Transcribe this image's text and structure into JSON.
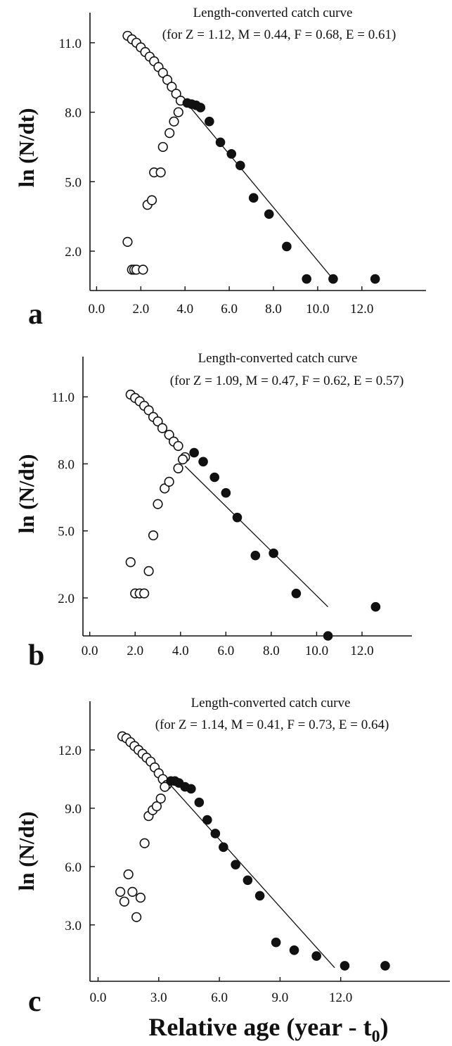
{
  "colors": {
    "ink": "#111111",
    "background": "#ffffff"
  },
  "figure": {
    "xlabel": "Relative age (year - t",
    "xlabel_subscript": "0",
    "xlabel_suffix": ")"
  },
  "chart_data": [
    {
      "type": "scatter",
      "panel_label": "a",
      "title": "Length-converted catch curve",
      "subtitle": "(for Z = 1.12, M = 0.44, F = 0.68, E = 0.61)",
      "ylabel": "ln (N/dt)",
      "xlabel": "",
      "xlim": [
        -0.3,
        14.9
      ],
      "ylim": [
        0.3,
        12.3
      ],
      "x_ticks": [
        0,
        2,
        4,
        6,
        8,
        10,
        12
      ],
      "x_tick_labels": [
        "0.0",
        "2.0",
        "4.0",
        "6.0",
        "8.0",
        "10.0",
        "12.0"
      ],
      "y_ticks": [
        2,
        5,
        8,
        11
      ],
      "y_tick_labels": [
        "2.0",
        "5.0",
        "8.0",
        "11.0"
      ],
      "series": [
        {
          "marker": "open",
          "x": [
            1.4,
            1.6,
            1.8,
            2.0,
            2.2,
            2.4,
            2.6,
            2.8,
            3.0,
            3.2,
            3.4,
            3.6,
            3.8,
            1.4,
            1.6,
            1.7,
            1.8,
            2.1,
            2.3,
            2.5,
            2.6,
            2.9,
            3.0,
            3.3,
            3.5,
            3.7
          ],
          "y": [
            11.3,
            11.15,
            11.0,
            10.8,
            10.6,
            10.4,
            10.2,
            9.95,
            9.7,
            9.4,
            9.1,
            8.8,
            8.5,
            2.4,
            1.2,
            1.2,
            1.2,
            1.2,
            4.0,
            4.2,
            5.4,
            5.4,
            6.5,
            7.1,
            7.6,
            8.0
          ]
        },
        {
          "marker": "filled",
          "x": [
            4.1,
            4.3,
            4.5,
            4.7,
            5.1,
            5.6,
            6.1,
            6.5,
            7.1,
            7.8,
            8.6,
            9.5,
            10.7,
            12.6
          ],
          "y": [
            8.4,
            8.35,
            8.3,
            8.2,
            7.6,
            6.7,
            6.2,
            5.7,
            4.3,
            3.6,
            2.2,
            0.8,
            0.8,
            0.8
          ]
        }
      ],
      "regression": {
        "x": [
          3.9,
          10.6
        ],
        "y": [
          8.6,
          0.9
        ]
      }
    },
    {
      "type": "scatter",
      "panel_label": "b",
      "title": "Length-converted catch curve",
      "subtitle": "(for Z = 1.09, M = 0.47, F = 0.62, E = 0.57)",
      "ylabel": "ln (N/dt)",
      "xlabel": "",
      "xlim": [
        -0.3,
        14.2
      ],
      "ylim": [
        0.3,
        12.8
      ],
      "x_ticks": [
        0,
        2,
        4,
        6,
        8,
        10,
        12
      ],
      "x_tick_labels": [
        "0.0",
        "2.0",
        "4.0",
        "6.0",
        "8.0",
        "10.0",
        "12.0"
      ],
      "y_ticks": [
        2,
        5,
        8,
        11
      ],
      "y_tick_labels": [
        "2.0",
        "5.0",
        "8.0",
        "11.0"
      ],
      "series": [
        {
          "marker": "open",
          "x": [
            1.8,
            2.0,
            2.2,
            2.4,
            2.6,
            2.8,
            3.0,
            3.2,
            3.5,
            3.7,
            3.9,
            4.2,
            1.8,
            2.0,
            2.2,
            2.4,
            2.6,
            2.8,
            3.0,
            3.3,
            3.5,
            3.9,
            4.1
          ],
          "y": [
            11.1,
            10.95,
            10.8,
            10.6,
            10.4,
            10.1,
            9.9,
            9.6,
            9.3,
            9.0,
            8.8,
            8.3,
            3.6,
            2.2,
            2.2,
            2.2,
            3.2,
            4.8,
            6.2,
            6.9,
            7.2,
            7.8,
            8.2
          ]
        },
        {
          "marker": "filled",
          "x": [
            4.6,
            5.0,
            5.5,
            6.0,
            6.5,
            7.3,
            8.1,
            9.1,
            10.5,
            12.6
          ],
          "y": [
            8.5,
            8.1,
            7.4,
            6.7,
            5.6,
            3.9,
            4.0,
            2.2,
            0.3,
            1.6
          ]
        }
      ],
      "regression": {
        "x": [
          4.2,
          10.5
        ],
        "y": [
          7.9,
          1.6
        ]
      }
    },
    {
      "type": "scatter",
      "panel_label": "c",
      "title": "Length-converted catch curve",
      "subtitle": "(for Z = 1.14, M = 0.41, F = 0.73, E = 0.64)",
      "ylabel": "ln (N/dt)",
      "xlabel": "",
      "xlim": [
        -0.4,
        17.4
      ],
      "ylim": [
        0.1,
        14.5
      ],
      "x_ticks": [
        0,
        3,
        6,
        9,
        12
      ],
      "x_tick_labels": [
        "0.0",
        "3.0",
        "6.0",
        "9.0",
        "12.0"
      ],
      "y_ticks": [
        3,
        6,
        9,
        12
      ],
      "y_tick_labels": [
        "3.0",
        "6.0",
        "9.0",
        "12.0"
      ],
      "series": [
        {
          "marker": "open",
          "x": [
            1.2,
            1.4,
            1.6,
            1.8,
            2.0,
            2.2,
            2.4,
            2.6,
            2.8,
            3.0,
            3.2,
            3.4,
            1.1,
            1.3,
            1.5,
            1.7,
            1.9,
            2.1,
            2.3,
            2.5,
            2.7,
            2.9,
            3.1,
            3.3
          ],
          "y": [
            12.7,
            12.6,
            12.4,
            12.2,
            12.0,
            11.8,
            11.6,
            11.4,
            11.1,
            10.8,
            10.5,
            10.2,
            4.7,
            4.2,
            5.6,
            4.7,
            3.4,
            4.4,
            7.2,
            8.6,
            8.9,
            9.1,
            9.5,
            10.1
          ]
        },
        {
          "marker": "filled",
          "x": [
            3.6,
            3.8,
            4.0,
            4.3,
            4.6,
            5.0,
            5.4,
            5.8,
            6.2,
            6.8,
            7.4,
            8.0,
            8.8,
            9.7,
            10.8,
            12.2,
            14.2
          ],
          "y": [
            10.4,
            10.4,
            10.3,
            10.1,
            10.0,
            9.3,
            8.4,
            7.7,
            7.0,
            6.1,
            5.3,
            4.5,
            2.1,
            1.7,
            1.4,
            0.9,
            0.9
          ]
        }
      ],
      "regression": {
        "x": [
          3.4,
          11.7
        ],
        "y": [
          10.4,
          0.8
        ]
      }
    }
  ]
}
